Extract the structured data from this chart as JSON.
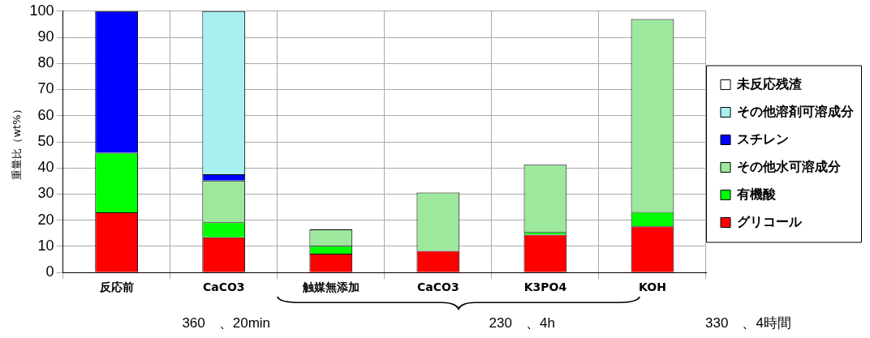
{
  "chart_data": {
    "type": "bar",
    "stacked": true,
    "ylabel": "重量比（wt%）",
    "categories": [
      "反応前",
      "CaCO3",
      "触媒無添加",
      "CaCO3",
      "K3PO4",
      "KOH"
    ],
    "series": [
      {
        "name": "グリコール",
        "color": "#ff0000",
        "values": [
          23,
          13.5,
          7.2,
          8.3,
          14.5,
          17.7
        ]
      },
      {
        "name": "有機酸",
        "color": "#00ff00",
        "values": [
          22.8,
          5.7,
          3,
          null,
          1,
          5.5
        ]
      },
      {
        "name": "その他水可溶成分",
        "color": "#9ee89e",
        "values": [
          null,
          16,
          6.3,
          22.3,
          25.7,
          73.8
        ]
      },
      {
        "name": "スチレン",
        "color": "#0000ff",
        "values": [
          54.2,
          2.4,
          null,
          null,
          null,
          null
        ]
      },
      {
        "name": "その他溶剤可溶成分",
        "color": "#a8f0f0",
        "values": [
          null,
          62.4,
          null,
          null,
          null,
          null
        ]
      },
      {
        "name": "未反応残渣",
        "color": "#ffffff",
        "values": [
          null,
          null,
          null,
          null,
          null,
          null
        ]
      }
    ],
    "ylim": [
      0,
      100
    ],
    "yticks": [
      0,
      10,
      20,
      30,
      40,
      50,
      60,
      70,
      80,
      90,
      100
    ],
    "grid": true,
    "legend": "right",
    "annotations": [
      "360　、20min",
      "230　、4h",
      "330　、4時間"
    ]
  }
}
